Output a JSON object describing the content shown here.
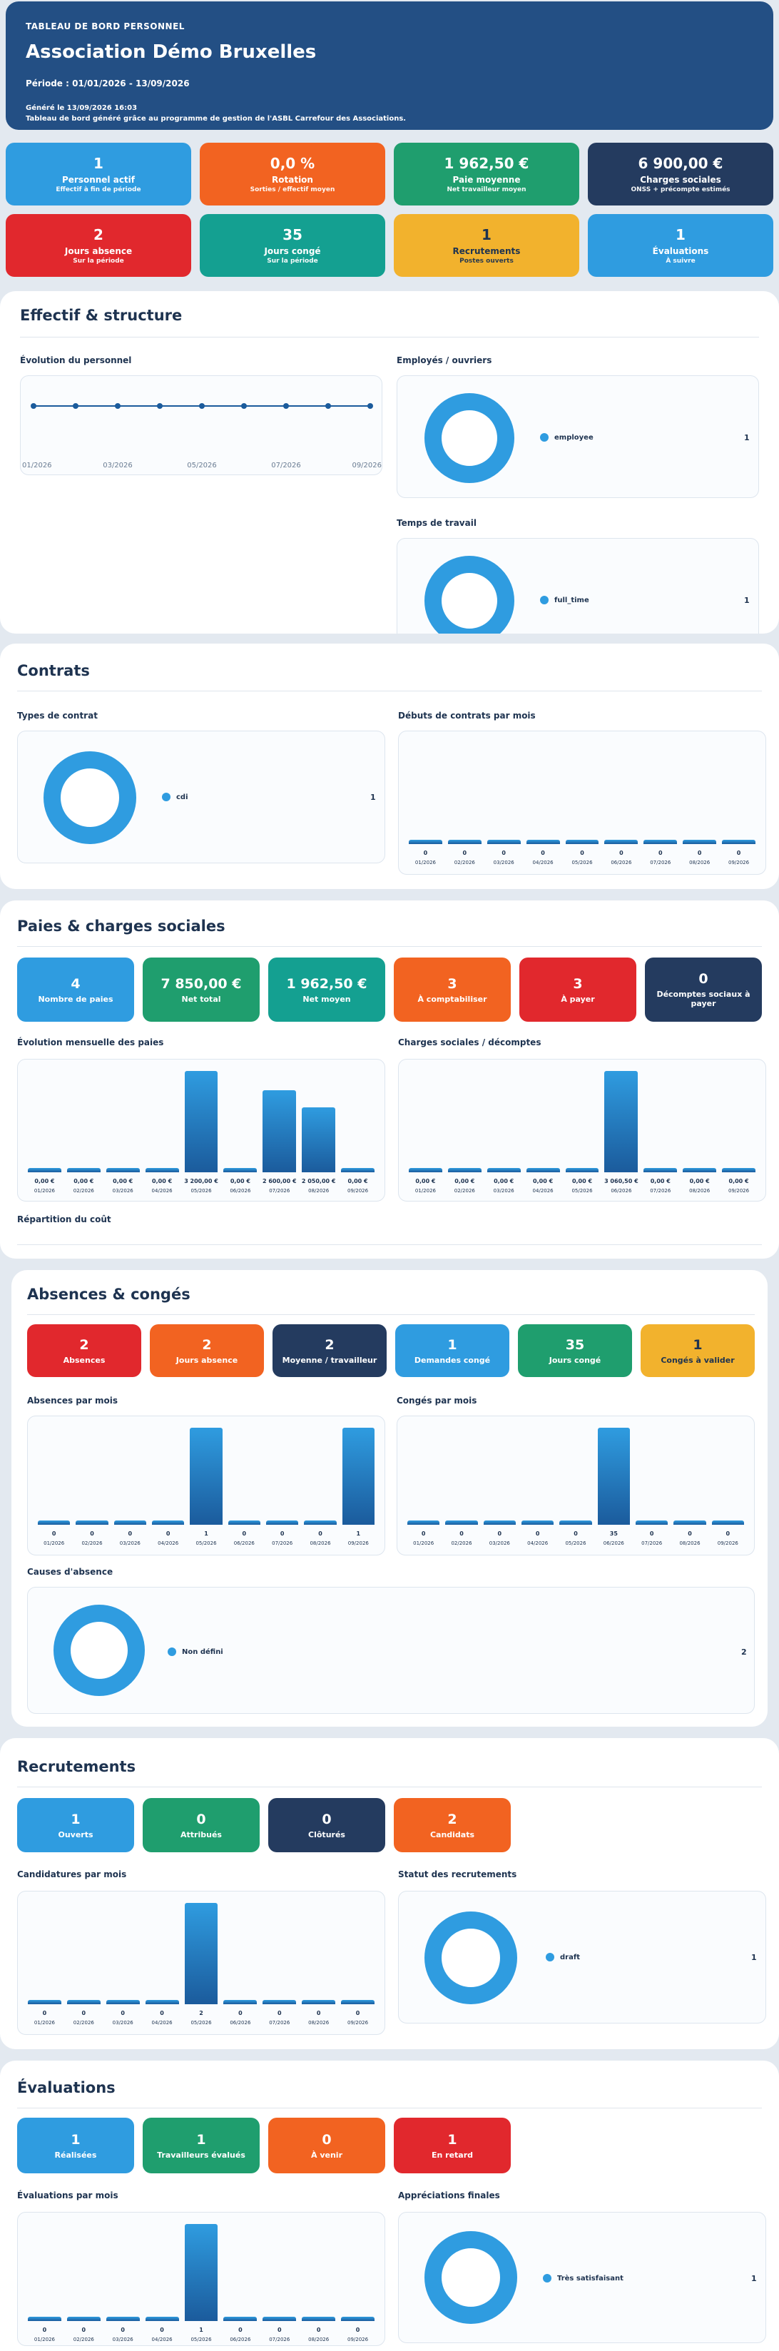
{
  "header": {
    "eyebrow": "TABLEAU DE BORD PERSONNEL",
    "title": "Association Démo Bruxelles",
    "period": "Période : 01/01/2026 - 13/09/2026",
    "generated": "Généré le 13/09/2026 16:03",
    "generated_note": "Tableau de bord généré grâce au programme de gestion de l'ASBL Carrefour des Associations."
  },
  "top_kpis": [
    {
      "value": "1",
      "label": "Personnel actif",
      "sub": "Effectif à fin de période",
      "color": "blue"
    },
    {
      "value": "0,0 %",
      "label": "Rotation",
      "sub": "Sorties / effectif moyen",
      "color": "orange"
    },
    {
      "value": "1 962,50 €",
      "label": "Paie moyenne",
      "sub": "Net travailleur moyen",
      "color": "green"
    },
    {
      "value": "6 900,00 €",
      "label": "Charges sociales",
      "sub": "ONSS + précompte estimés",
      "color": "navy"
    },
    {
      "value": "2",
      "label": "Jours absence",
      "sub": "Sur la période",
      "color": "red"
    },
    {
      "value": "35",
      "label": "Jours congé",
      "sub": "Sur la période",
      "color": "teal"
    },
    {
      "value": "1",
      "label": "Recrutements",
      "sub": "Postes ouverts",
      "color": "yellow"
    },
    {
      "value": "1",
      "label": "Évaluations",
      "sub": "À suivre",
      "color": "blue"
    }
  ],
  "months": [
    "01/2026",
    "02/2026",
    "03/2026",
    "04/2026",
    "05/2026",
    "06/2026",
    "07/2026",
    "08/2026",
    "09/2026"
  ],
  "effectif": {
    "title": "Effectif & structure",
    "evolution_title": "Évolution du personnel",
    "evolution_xticks": [
      "01/2026",
      "03/2026",
      "05/2026",
      "07/2026",
      "09/2026"
    ],
    "evolution_values": [
      1,
      1,
      1,
      1,
      1,
      1,
      1,
      1,
      1
    ],
    "employes_title": "Employés / ouvriers",
    "employes_legend": {
      "label": "employee",
      "value": "1"
    },
    "temps_title": "Temps de travail",
    "temps_legend": {
      "label": "full_time",
      "value": "1"
    }
  },
  "contrats": {
    "title": "Contrats",
    "types_title": "Types de contrat",
    "types_legend": {
      "label": "cdi",
      "value": "1"
    },
    "debuts_title": "Débuts de contrats par mois",
    "debuts_values": [
      0,
      0,
      0,
      0,
      0,
      0,
      0,
      0,
      0
    ],
    "debuts_labels": [
      "0",
      "0",
      "0",
      "0",
      "0",
      "0",
      "0",
      "0",
      "0"
    ]
  },
  "paies": {
    "title": "Paies & charges sociales",
    "kpis": [
      {
        "value": "4",
        "label": "Nombre de paies",
        "color": "blue"
      },
      {
        "value": "7 850,00 €",
        "label": "Net total",
        "color": "green"
      },
      {
        "value": "1 962,50 €",
        "label": "Net moyen",
        "color": "teal"
      },
      {
        "value": "3",
        "label": "À comptabiliser",
        "color": "orange"
      },
      {
        "value": "3",
        "label": "À payer",
        "color": "red"
      },
      {
        "value": "0",
        "label": "Décomptes sociaux à payer",
        "color": "navy"
      }
    ],
    "evolution_title": "Évolution mensuelle des paies",
    "evolution_values": [
      0,
      0,
      0,
      0,
      3200,
      0,
      2600,
      2050,
      0
    ],
    "evolution_labels": [
      "0,00 €",
      "0,00 €",
      "0,00 €",
      "0,00 €",
      "3 200,00 €",
      "0,00 €",
      "2 600,00 €",
      "2 050,00 €",
      "0,00 €"
    ],
    "charges_title": "Charges sociales / décomptes",
    "charges_values": [
      0,
      0,
      0,
      0,
      0,
      3060.5,
      0,
      0,
      0
    ],
    "charges_labels": [
      "0,00 €",
      "0,00 €",
      "0,00 €",
      "0,00 €",
      "0,00 €",
      "3 060,50 €",
      "0,00 €",
      "0,00 €",
      "0,00 €"
    ],
    "repartition_title": "Répartition du coût"
  },
  "absences": {
    "title": "Absences & congés",
    "kpis": [
      {
        "value": "2",
        "label": "Absences",
        "color": "red"
      },
      {
        "value": "2",
        "label": "Jours absence",
        "color": "orange"
      },
      {
        "value": "2",
        "label": "Moyenne / travailleur",
        "color": "navy"
      },
      {
        "value": "1",
        "label": "Demandes congé",
        "color": "blue"
      },
      {
        "value": "35",
        "label": "Jours congé",
        "color": "green"
      },
      {
        "value": "1",
        "label": "Congés à valider",
        "color": "yellow"
      }
    ],
    "absences_title": "Absences par mois",
    "absences_values": [
      0,
      0,
      0,
      0,
      1,
      0,
      0,
      0,
      1
    ],
    "absences_labels": [
      "0",
      "0",
      "0",
      "0",
      "1",
      "0",
      "0",
      "0",
      "1"
    ],
    "conges_title": "Congés par mois",
    "conges_values": [
      0,
      0,
      0,
      0,
      0,
      35,
      0,
      0,
      0
    ],
    "conges_labels": [
      "0",
      "0",
      "0",
      "0",
      "0",
      "35",
      "0",
      "0",
      "0"
    ],
    "causes_title": "Causes d'absence",
    "causes_legend": {
      "label": "Non défini",
      "value": "2"
    }
  },
  "recrutements": {
    "title": "Recrutements",
    "kpis": [
      {
        "value": "1",
        "label": "Ouverts",
        "color": "blue"
      },
      {
        "value": "0",
        "label": "Attribués",
        "color": "green"
      },
      {
        "value": "0",
        "label": "Clôturés",
        "color": "navy"
      },
      {
        "value": "2",
        "label": "Candidats",
        "color": "orange"
      }
    ],
    "candidatures_title": "Candidatures par mois",
    "candidatures_values": [
      0,
      0,
      0,
      0,
      2,
      0,
      0,
      0,
      0
    ],
    "candidatures_labels": [
      "0",
      "0",
      "0",
      "0",
      "2",
      "0",
      "0",
      "0",
      "0"
    ],
    "statut_title": "Statut des recrutements",
    "statut_legend": {
      "label": "draft",
      "value": "1"
    }
  },
  "evaluations": {
    "title": "Évaluations",
    "kpis": [
      {
        "value": "1",
        "label": "Réalisées",
        "color": "blue"
      },
      {
        "value": "1",
        "label": "Travailleurs évalués",
        "color": "green"
      },
      {
        "value": "0",
        "label": "À venir",
        "color": "orange"
      },
      {
        "value": "1",
        "label": "En retard",
        "color": "red"
      }
    ],
    "evaluations_title": "Évaluations par mois",
    "evaluations_values": [
      0,
      0,
      0,
      0,
      1,
      0,
      0,
      0,
      0
    ],
    "evaluations_labels": [
      "0",
      "0",
      "0",
      "0",
      "1",
      "0",
      "0",
      "0",
      "0"
    ],
    "appreciations_title": "Appréciations finales",
    "appreciations_legend": {
      "label": "Très satisfaisant",
      "value": "1"
    }
  }
}
